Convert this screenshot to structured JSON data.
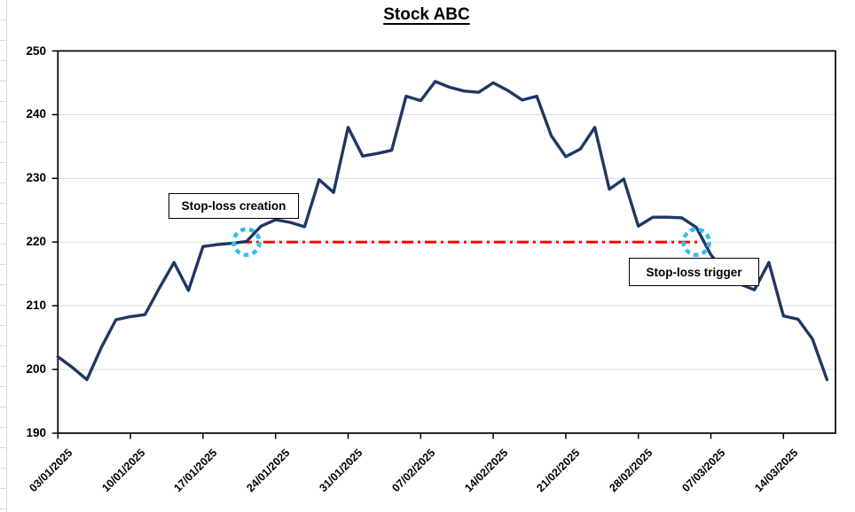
{
  "colors": {
    "price_line": "#1F3864",
    "stop_loss_line": "#FF0000",
    "marker_ring": "#33BEEC",
    "gridline": "#D9D9D9",
    "axis": "#000000",
    "annotation_border": "#000000",
    "background": "#FFFFFF"
  },
  "chart_data": {
    "type": "line",
    "title": "Stock ABC",
    "xlabel": "",
    "ylabel": "",
    "ylim": [
      190,
      250
    ],
    "grid": "horizontal",
    "legend": "none",
    "y_ticks": [
      190,
      200,
      210,
      220,
      230,
      240,
      250
    ],
    "y_tick_labels": [
      "190",
      "200",
      "210",
      "220",
      "230",
      "240",
      "250"
    ],
    "x_tick_labels": [
      "03/01/2025",
      "10/01/2025",
      "17/01/2025",
      "24/01/2025",
      "31/01/2025",
      "07/02/2025",
      "14/02/2025",
      "21/02/2025",
      "28/02/2025",
      "07/03/2025",
      "14/03/2025"
    ],
    "x": [
      "03/01/2025",
      "06/01/2025",
      "07/01/2025",
      "08/01/2025",
      "09/01/2025",
      "10/01/2025",
      "13/01/2025",
      "14/01/2025",
      "15/01/2025",
      "16/01/2025",
      "17/01/2025",
      "20/01/2025",
      "21/01/2025",
      "22/01/2025",
      "23/01/2025",
      "24/01/2025",
      "27/01/2025",
      "28/01/2025",
      "29/01/2025",
      "30/01/2025",
      "31/01/2025",
      "03/02/2025",
      "04/02/2025",
      "05/02/2025",
      "06/02/2025",
      "07/02/2025",
      "10/02/2025",
      "11/02/2025",
      "12/02/2025",
      "13/02/2025",
      "14/02/2025",
      "17/02/2025",
      "18/02/2025",
      "19/02/2025",
      "20/02/2025",
      "21/02/2025",
      "24/02/2025",
      "25/02/2025",
      "26/02/2025",
      "27/02/2025",
      "28/02/2025",
      "03/03/2025",
      "04/03/2025",
      "05/03/2025",
      "06/03/2025",
      "07/03/2025",
      "10/03/2025",
      "11/03/2025",
      "12/03/2025",
      "13/03/2025",
      "14/03/2025",
      "17/03/2025",
      "18/03/2025",
      "19/03/2025"
    ],
    "series": [
      {
        "name": "Stock ABC",
        "color": "#1F3864",
        "values": [
          202.0,
          200.3,
          198.4,
          203.5,
          207.8,
          208.3,
          208.6,
          212.8,
          216.8,
          212.4,
          219.3,
          219.6,
          219.8,
          220.1,
          222.5,
          223.5,
          223.1,
          222.4,
          229.8,
          227.8,
          238.0,
          233.5,
          233.9,
          234.4,
          242.9,
          242.2,
          245.2,
          244.3,
          243.7,
          243.5,
          245.0,
          243.8,
          242.3,
          242.9,
          236.7,
          233.4,
          234.6,
          238.0,
          228.3,
          229.9,
          222.5,
          223.9,
          223.9,
          223.8,
          222.3,
          218.0,
          215.2,
          213.4,
          212.5,
          216.8,
          208.4,
          207.9,
          204.8,
          198.4
        ]
      }
    ],
    "stop_loss": {
      "level": 220,
      "start_date": "22/01/2025",
      "end_date": "06/03/2025",
      "color": "#FF0000",
      "style": "dash-dot"
    },
    "markers": [
      {
        "label": "Stop-loss creation",
        "date": "22/01/2025",
        "value": 220
      },
      {
        "label": "Stop-loss trigger",
        "date": "06/03/2025",
        "value": 220
      }
    ]
  }
}
